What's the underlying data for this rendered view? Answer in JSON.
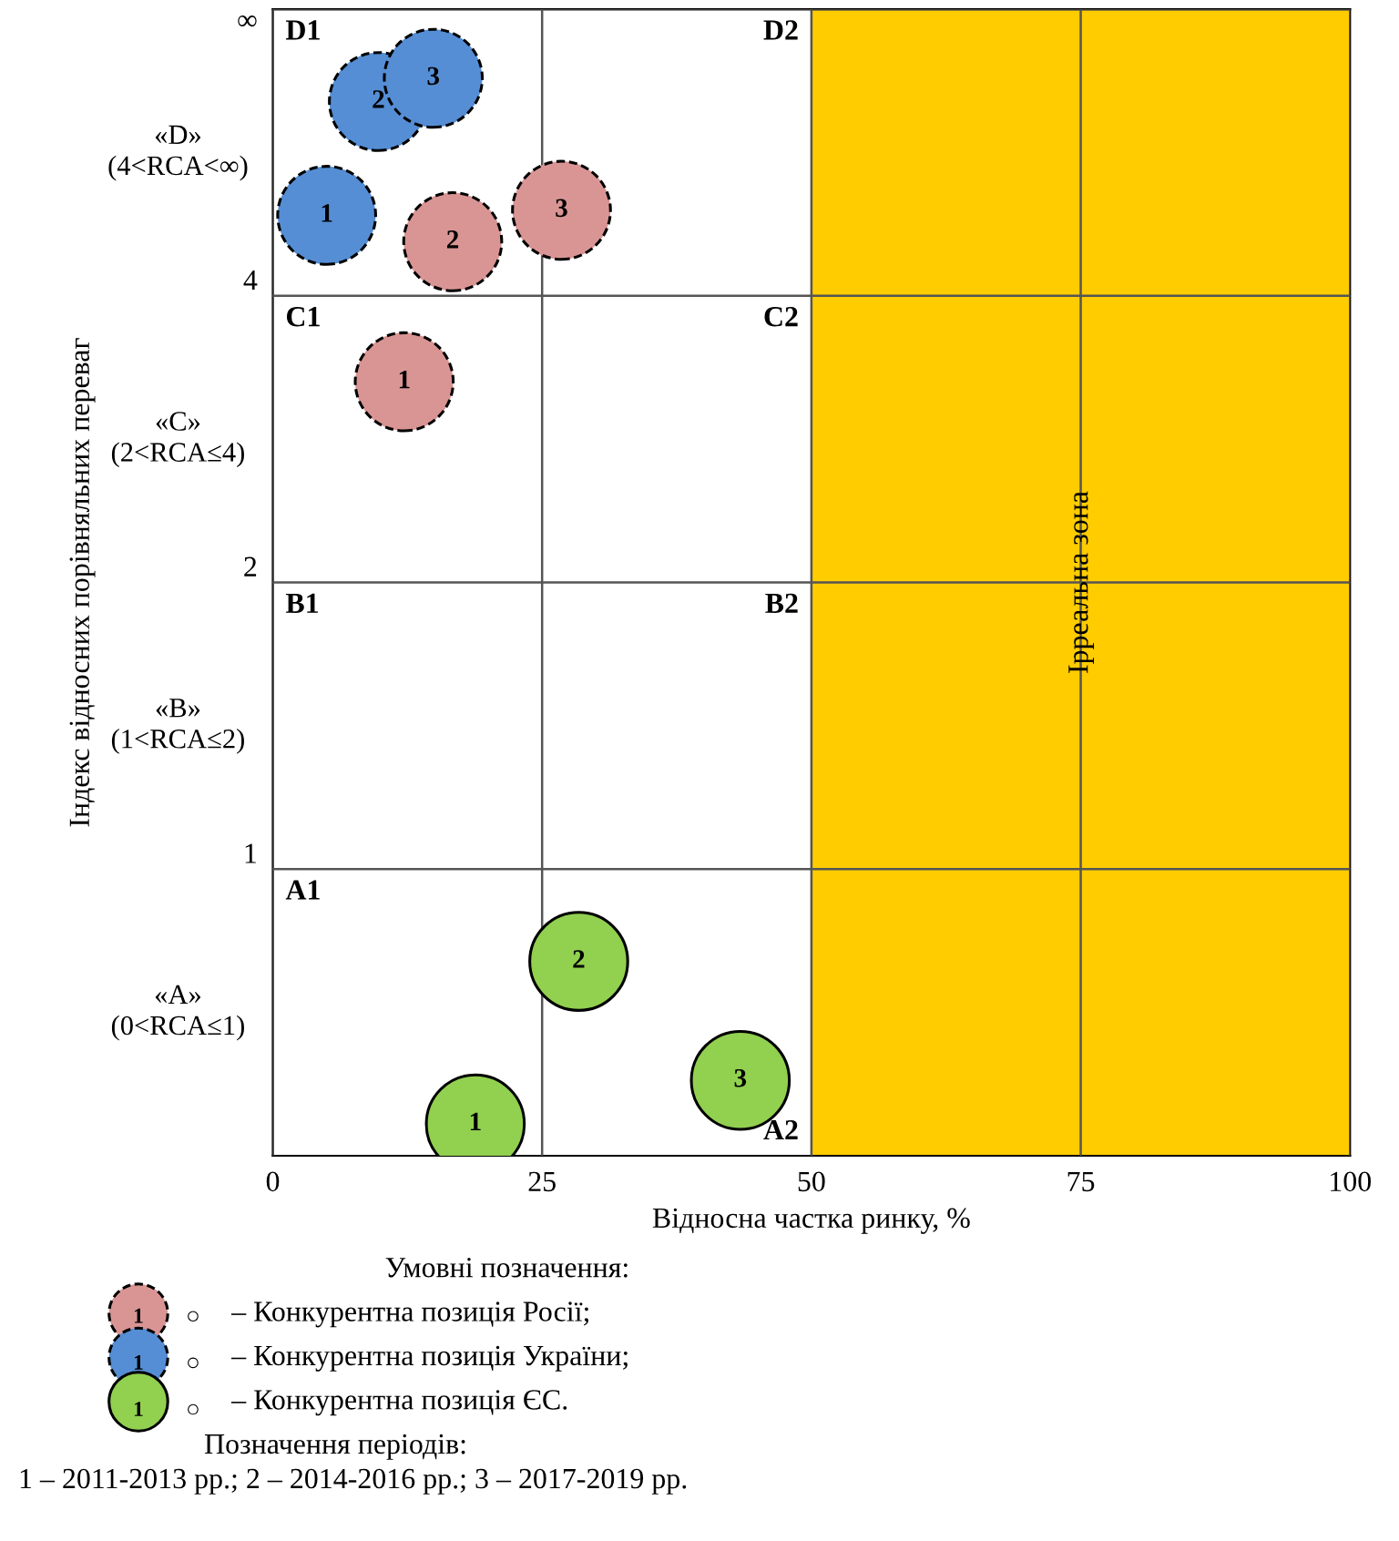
{
  "chart_data": {
    "type": "scatter",
    "xlabel": "Відносна частка ринку, %",
    "ylabel": "Індекс відносних порівняльних переваг",
    "legend_title": "Умовні позначення:",
    "xlim": [
      0,
      100
    ],
    "xticks": [
      0,
      25,
      50,
      75,
      100
    ],
    "log": "y",
    "ylim": [
      0.5,
      8
    ],
    "yticks": [
      1,
      2,
      4,
      {
        "value": 8,
        "label": "∞"
      }
    ],
    "grid": true,
    "legend": "bottom",
    "series": [
      {
        "name": "– Конкурентна позиція Росії;",
        "color": "#d99594",
        "line_style": "dashed",
        "x": [
          12.2,
          16.7,
          26.8
        ],
        "values": [
          3.25,
          4.56,
          4.92
        ]
      },
      {
        "name": "– Конкурентна позиція України;",
        "color": "#558ed5",
        "line_style": "dashed",
        "x": [
          5.0,
          9.8,
          14.9
        ],
        "values": [
          4.86,
          6.4,
          6.77
        ]
      },
      {
        "name": "– Конкурентна позиція ЄС.",
        "color": "#92d050",
        "line_style": "solid",
        "x": [
          18.8,
          28.4,
          43.4
        ],
        "values": [
          0.54,
          0.8,
          0.6
        ]
      }
    ],
    "bands": [
      {
        "axis": "x",
        "from": 50,
        "to": 100,
        "label": "Ірреальна зона",
        "color": "#ffcc00"
      }
    ],
    "annotations": [
      "«A»\n(0<RCA≤1)",
      "«B»\n(1<RCA≤2)",
      "«C»\n(2<RCA≤4)",
      "«D»\n(4<RCA<∞)",
      "D1",
      "D2",
      "C1",
      "C2",
      "B1",
      "B2",
      "A1",
      "A2",
      {
        "text": "1",
        "x": 12.2,
        "y": 3.25
      },
      {
        "text": "2",
        "x": 16.7,
        "y": 4.56
      },
      {
        "text": "3",
        "x": 26.8,
        "y": 4.92
      },
      {
        "text": "1",
        "x": 5.0,
        "y": 4.86
      },
      {
        "text": "2",
        "x": 9.8,
        "y": 6.4
      },
      {
        "text": "3",
        "x": 14.9,
        "y": 6.77
      },
      {
        "text": "1",
        "x": 18.8,
        "y": 0.54
      },
      {
        "text": "2",
        "x": 28.4,
        "y": 0.8
      },
      {
        "text": "3",
        "x": 43.4,
        "y": 0.6
      },
      "1",
      "1",
      "1",
      "○",
      "○",
      "○",
      "Позначення періодів:",
      "1 – 2011-2013 рр.; 2 – 2014-2016 рр.; 3 – 2017-2019 рр."
    ]
  }
}
